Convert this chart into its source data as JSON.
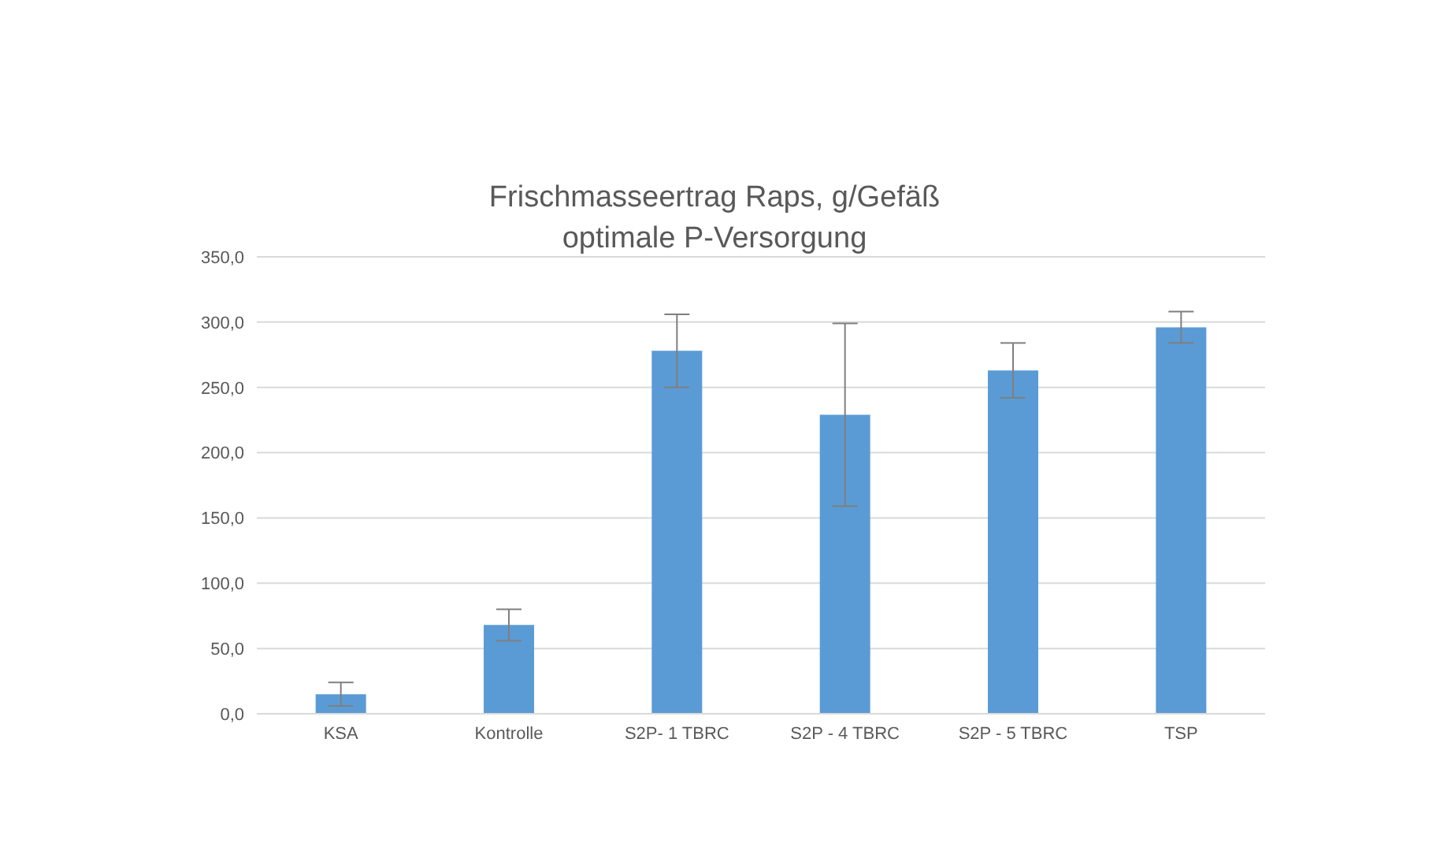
{
  "chart_data": {
    "type": "bar",
    "title": "Frischmasseertrag Raps, g/Gefäß",
    "subtitle": "optimale P-Versorgung",
    "categories": [
      "KSA",
      "Kontrolle",
      "S2P- 1 TBRC",
      "S2P - 4 TBRC",
      "S2P - 5 TBRC",
      "TSP"
    ],
    "values": [
      15,
      68,
      278,
      229,
      263,
      296
    ],
    "errors": [
      9,
      12,
      28,
      70,
      21,
      12
    ],
    "color": "#5b9bd5",
    "ylim": [
      0,
      350
    ],
    "yticks": [
      {
        "value": 0,
        "label": "0,0"
      },
      {
        "value": 50,
        "label": "50,0"
      },
      {
        "value": 100,
        "label": "100,0"
      },
      {
        "value": 150,
        "label": "150,0"
      },
      {
        "value": 200,
        "label": "200,0"
      },
      {
        "value": 250,
        "label": "250,0"
      },
      {
        "value": 300,
        "label": "300,0"
      },
      {
        "value": 350,
        "label": "350,0"
      }
    ],
    "grid": "y"
  }
}
